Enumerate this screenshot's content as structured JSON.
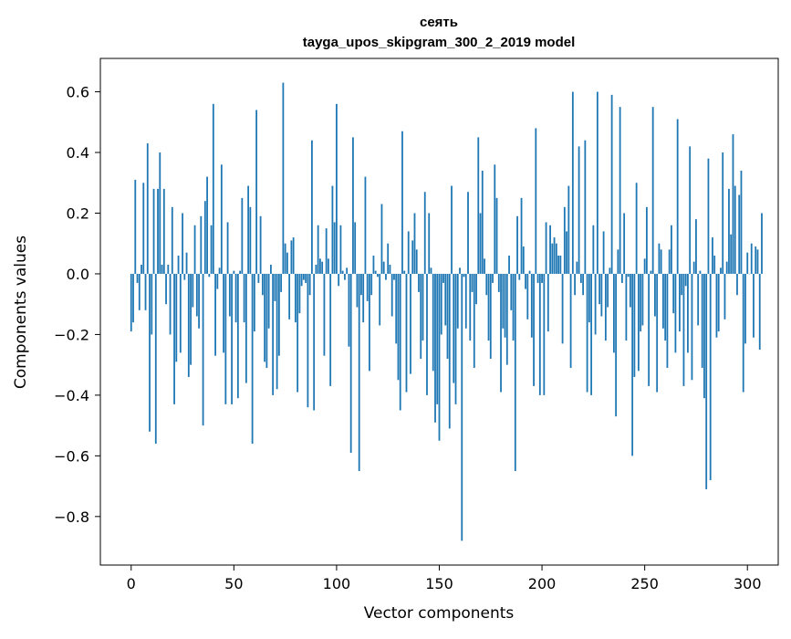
{
  "figure": {
    "title": "сеять",
    "subtitle": "tayga_upos_skipgram_300_2_2019 model"
  },
  "chart_data": {
    "type": "bar",
    "title": "сеять",
    "subtitle": "tayga_upos_skipgram_300_2_2019 model",
    "xlabel": "Vector components",
    "ylabel": "Components values",
    "xlim": [
      -15,
      315
    ],
    "ylim": [
      -0.96,
      0.71
    ],
    "x_ticks": [
      0,
      50,
      100,
      150,
      200,
      250,
      300
    ],
    "x_tick_labels": [
      "0",
      "50",
      "100",
      "150",
      "200",
      "250",
      "300"
    ],
    "y_ticks": [
      -0.8,
      -0.6,
      -0.4,
      -0.2,
      0.0,
      0.2,
      0.4,
      0.6
    ],
    "y_tick_labels": [
      "−0.8",
      "−0.6",
      "−0.4",
      "−0.2",
      "0.0",
      "0.2",
      "0.4",
      "0.6"
    ],
    "bar_color": "#1f77b4",
    "grid": false,
    "values": [
      -0.19,
      -0.16,
      0.31,
      -0.03,
      -0.12,
      0.03,
      0.3,
      -0.12,
      0.43,
      -0.52,
      -0.2,
      0.28,
      -0.56,
      0.28,
      0.4,
      0.03,
      0.28,
      -0.1,
      0.03,
      -0.2,
      0.22,
      -0.43,
      -0.29,
      0.06,
      -0.26,
      0.2,
      -0.02,
      0.07,
      -0.34,
      -0.3,
      -0.11,
      0.16,
      -0.14,
      -0.18,
      0.19,
      -0.5,
      0.24,
      0.32,
      -0.01,
      0.16,
      0.56,
      -0.27,
      -0.05,
      0.02,
      0.36,
      -0.26,
      -0.43,
      0.17,
      -0.14,
      -0.43,
      0.01,
      -0.16,
      -0.41,
      0.01,
      0.25,
      -0.16,
      -0.36,
      0.29,
      0.22,
      -0.56,
      -0.19,
      0.54,
      -0.03,
      0.19,
      -0.07,
      -0.29,
      -0.31,
      -0.18,
      0.03,
      -0.4,
      -0.09,
      -0.38,
      -0.27,
      -0.06,
      0.63,
      0.1,
      0.07,
      -0.15,
      0.11,
      0.12,
      -0.16,
      -0.39,
      -0.13,
      -0.04,
      -0.02,
      -0.03,
      -0.44,
      -0.07,
      0.44,
      -0.45,
      0.03,
      0.16,
      0.05,
      0.04,
      -0.27,
      0.15,
      0.05,
      -0.37,
      0.29,
      0.17,
      0.56,
      -0.04,
      0.16,
      0.01,
      -0.02,
      0.02,
      -0.24,
      -0.59,
      0.45,
      0.17,
      -0.11,
      -0.65,
      -0.07,
      -0.16,
      0.32,
      -0.09,
      -0.32,
      -0.07,
      0.06,
      0.01,
      -0.01,
      -0.17,
      0.23,
      0.04,
      -0.02,
      0.1,
      0.03,
      -0.14,
      -0.02,
      -0.23,
      -0.35,
      -0.45,
      0.47,
      0.01,
      -0.39,
      0.14,
      -0.33,
      0.11,
      0.2,
      0.08,
      -0.06,
      -0.28,
      -0.22,
      0.27,
      -0.4,
      0.2,
      0.02,
      -0.32,
      -0.49,
      -0.43,
      -0.55,
      -0.2,
      -0.03,
      -0.17,
      -0.28,
      -0.51,
      0.29,
      -0.36,
      -0.43,
      -0.18,
      0.02,
      -0.88,
      -0.01,
      -0.18,
      0.27,
      -0.22,
      -0.06,
      -0.31,
      -0.1,
      0.45,
      0.2,
      0.34,
      0.05,
      -0.07,
      -0.22,
      -0.28,
      -0.03,
      0.36,
      0.25,
      -0.06,
      -0.39,
      -0.18,
      -0.21,
      -0.3,
      0.06,
      -0.12,
      -0.22,
      -0.65,
      0.19,
      -0.02,
      0.25,
      0.09,
      -0.05,
      -0.15,
      0.01,
      -0.21,
      -0.37,
      0.48,
      -0.03,
      -0.4,
      -0.03,
      -0.4,
      0.17,
      -0.19,
      0.16,
      0.1,
      0.12,
      0.1,
      0.06,
      0.06,
      -0.23,
      0.22,
      0.14,
      0.29,
      -0.31,
      0.6,
      -0.07,
      0.04,
      0.42,
      -0.03,
      -0.07,
      0.44,
      -0.39,
      -0.16,
      -0.4,
      0.16,
      -0.2,
      0.6,
      -0.1,
      -0.14,
      0.14,
      -0.22,
      -0.11,
      0.02,
      0.59,
      -0.26,
      -0.47,
      0.08,
      0.55,
      -0.03,
      0.2,
      -0.22,
      -0.01,
      -0.11,
      -0.6,
      -0.34,
      0.3,
      -0.32,
      -0.19,
      -0.17,
      0.05,
      0.22,
      -0.37,
      0.01,
      0.55,
      -0.14,
      -0.39,
      0.1,
      0.08,
      -0.18,
      -0.22,
      -0.31,
      0.08,
      0.16,
      -0.13,
      -0.26,
      0.51,
      -0.19,
      -0.07,
      -0.37,
      -0.04,
      -0.26,
      0.42,
      -0.35,
      0.04,
      0.18,
      -0.17,
      0.01,
      -0.31,
      -0.41,
      -0.71,
      0.38,
      -0.68,
      0.12,
      0.06,
      -0.21,
      -0.19,
      0.02,
      0.4,
      -0.15,
      0.04,
      0.28,
      0.13,
      0.46,
      0.29,
      -0.07,
      0.26,
      0.34,
      -0.39,
      -0.23,
      0.07,
      0.0,
      0.1,
      -0.21,
      0.09,
      0.08,
      -0.25,
      0.2
    ]
  }
}
